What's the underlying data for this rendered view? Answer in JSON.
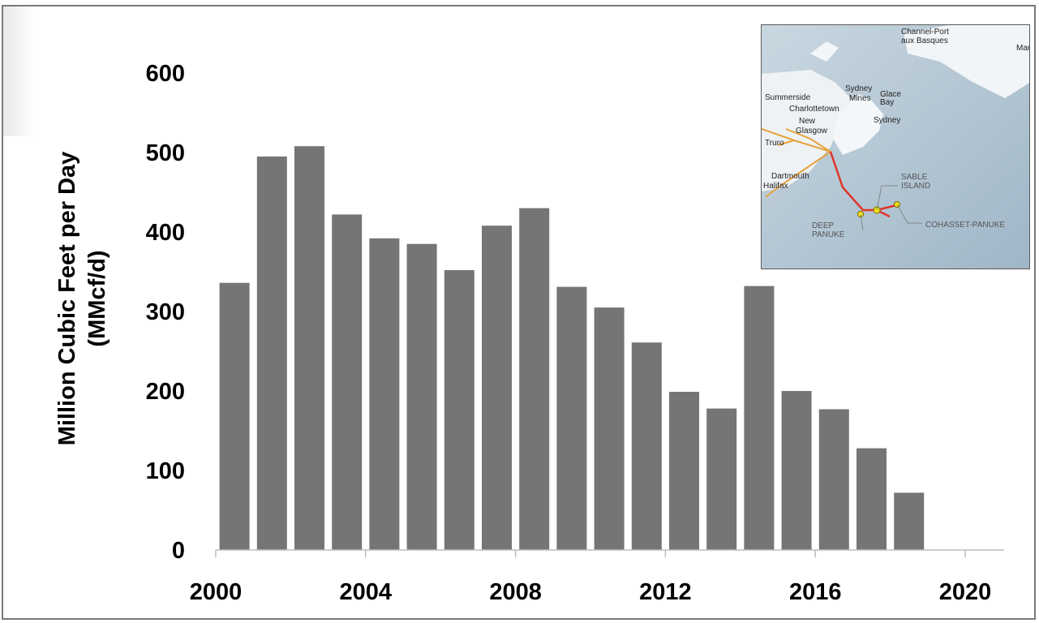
{
  "chart_data": {
    "type": "bar",
    "title": "",
    "xlabel": "",
    "ylabel_line1": "Million Cubic Feet per Day",
    "ylabel_line2": "(MMcf/d)",
    "x_ticks": [
      "2000",
      "2004",
      "2008",
      "2012",
      "2016",
      "2020"
    ],
    "y_ticks": [
      "0",
      "100",
      "200",
      "300",
      "400",
      "500",
      "600"
    ],
    "ylim": [
      0,
      600
    ],
    "xlim": [
      2000,
      2020
    ],
    "grid": false,
    "bar_color": "#757575",
    "categories": [
      2000,
      2001,
      2002,
      2003,
      2004,
      2005,
      2006,
      2007,
      2008,
      2009,
      2010,
      2011,
      2012,
      2013,
      2014,
      2015,
      2016,
      2017,
      2018
    ],
    "values": [
      336,
      495,
      508,
      422,
      392,
      385,
      352,
      408,
      430,
      331,
      305,
      261,
      199,
      178,
      332,
      200,
      177,
      128,
      72
    ]
  },
  "inset_map": {
    "places": [
      "Channel-Port",
      "aux Basques",
      "Mary",
      "Summerside",
      "Charlottetown",
      "Sydney",
      "Mines",
      "Glace",
      "Bay",
      "Sydney",
      "New",
      "Glasgow",
      "Truro",
      "Dartmouth",
      "Halifax"
    ],
    "fields": [
      "SABLE",
      "ISLAND",
      "DEEP",
      "PANUKE",
      "COHASSET-PANUKE"
    ],
    "colors": {
      "water": "#b9cad6",
      "land": "#eef2f4",
      "pipeline": "#e6a23c",
      "offshore": "#e0352b",
      "marker": "#f2e31c"
    }
  }
}
